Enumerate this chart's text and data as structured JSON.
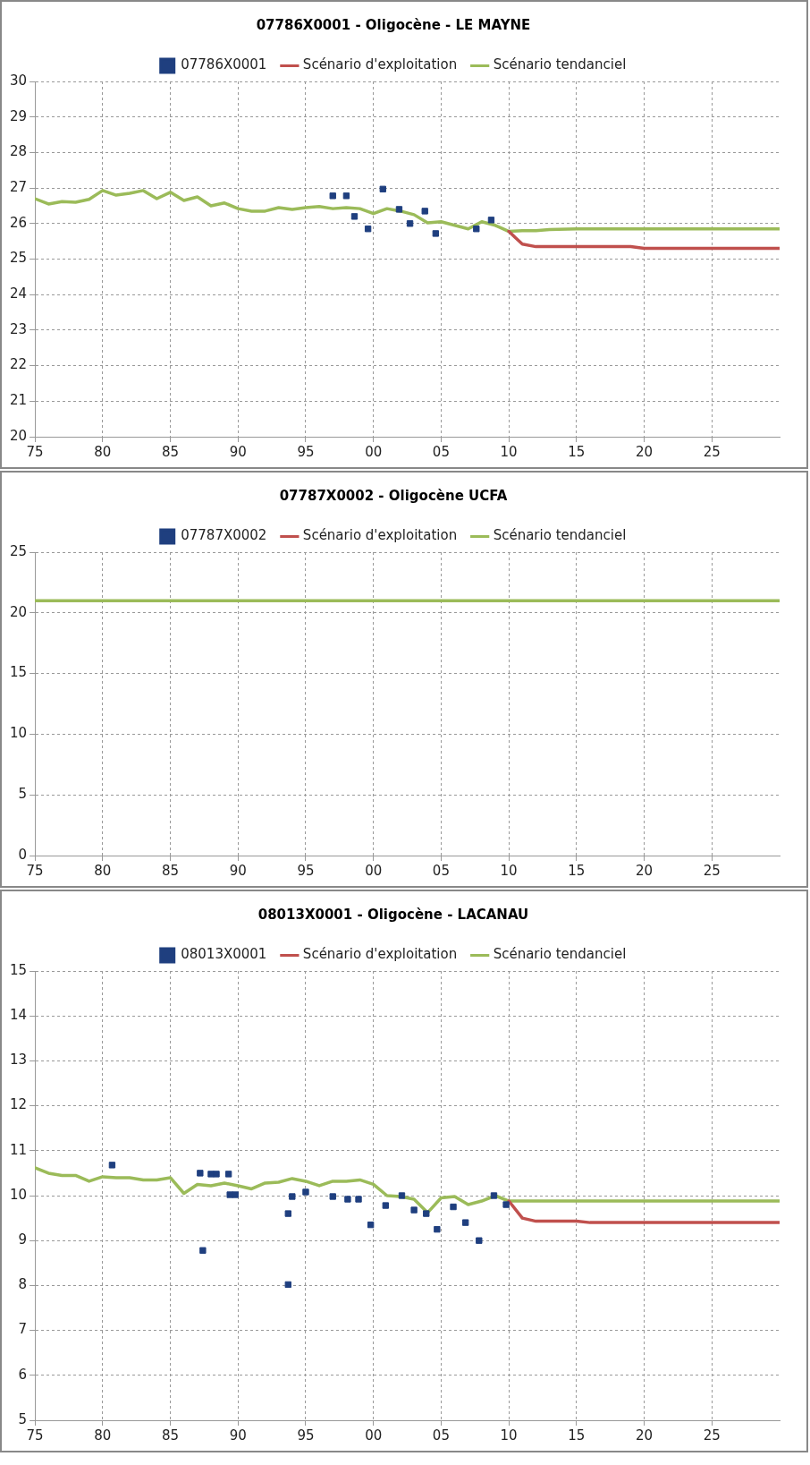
{
  "chart_data": [
    {
      "type": "line",
      "title": "07786X0001 - Oligocène - LE MAYNE",
      "legend": "top",
      "grid": true,
      "xlim": [
        1975,
        2030
      ],
      "xticks": [
        {
          "value": 1975,
          "label": "75"
        },
        {
          "value": 1980,
          "label": "80"
        },
        {
          "value": 1985,
          "label": "85"
        },
        {
          "value": 1990,
          "label": "90"
        },
        {
          "value": 1995,
          "label": "95"
        },
        {
          "value": 2000,
          "label": "00"
        },
        {
          "value": 2005,
          "label": "05"
        },
        {
          "value": 2010,
          "label": "10"
        },
        {
          "value": 2015,
          "label": "15"
        },
        {
          "value": 2020,
          "label": "20"
        },
        {
          "value": 2025,
          "label": "25"
        }
      ],
      "ylim": [
        20,
        30
      ],
      "yticks": [
        20,
        21,
        22,
        23,
        24,
        25,
        26,
        27,
        28,
        29,
        30
      ],
      "series": [
        {
          "name": "07786X0001",
          "type": "scatter",
          "marker": "square",
          "color": "#1f3f7f",
          "x": [
            1997.0,
            1998.0,
            1998.6,
            1999.6,
            2000.7,
            2001.9,
            2002.7,
            2003.8,
            2004.6,
            2007.6,
            2008.7
          ],
          "values": [
            26.78,
            26.78,
            26.2,
            25.85,
            26.97,
            26.4,
            26.0,
            26.35,
            25.72,
            25.85,
            26.1
          ]
        },
        {
          "name": "Scénario d'exploitation",
          "color": "#c0504d",
          "x": [
            2010,
            2010.5,
            2011,
            2012,
            2015,
            2019,
            2020,
            2030
          ],
          "values": [
            25.78,
            25.6,
            25.42,
            25.35,
            25.35,
            25.35,
            25.3,
            25.3
          ]
        },
        {
          "name": "Scénario tendanciel",
          "color": "#9bbb59",
          "x": [
            1975,
            1976,
            1977,
            1978,
            1979,
            1980,
            1981,
            1982,
            1983,
            1984,
            1985,
            1986,
            1987,
            1988,
            1989,
            1990,
            1991,
            1992,
            1993,
            1994,
            1995,
            1996,
            1997,
            1998,
            1999,
            2000,
            2001,
            2002,
            2003,
            2004,
            2005,
            2006,
            2007,
            2008,
            2009,
            2010,
            2011,
            2012,
            2013,
            2015,
            2030
          ],
          "values": [
            26.7,
            26.55,
            26.62,
            26.6,
            26.68,
            26.93,
            26.8,
            26.85,
            26.93,
            26.7,
            26.88,
            26.65,
            26.75,
            26.5,
            26.58,
            26.42,
            26.35,
            26.35,
            26.45,
            26.4,
            26.45,
            26.48,
            26.42,
            26.45,
            26.42,
            26.28,
            26.42,
            26.35,
            26.25,
            26.02,
            26.05,
            25.95,
            25.85,
            26.05,
            25.95,
            25.78,
            25.8,
            25.8,
            25.83,
            25.85,
            25.85
          ]
        }
      ]
    },
    {
      "type": "line",
      "title": "07787X0002 - Oligocène UCFA",
      "legend": "top",
      "grid": true,
      "xlim": [
        1975,
        2030
      ],
      "xticks": [
        {
          "value": 1975,
          "label": "75"
        },
        {
          "value": 1980,
          "label": "80"
        },
        {
          "value": 1985,
          "label": "85"
        },
        {
          "value": 1990,
          "label": "90"
        },
        {
          "value": 1995,
          "label": "95"
        },
        {
          "value": 2000,
          "label": "00"
        },
        {
          "value": 2005,
          "label": "05"
        },
        {
          "value": 2010,
          "label": "10"
        },
        {
          "value": 2015,
          "label": "15"
        },
        {
          "value": 2020,
          "label": "20"
        },
        {
          "value": 2025,
          "label": "25"
        }
      ],
      "ylim": [
        0,
        25
      ],
      "yticks": [
        0,
        5,
        10,
        15,
        20,
        25
      ],
      "series": [
        {
          "name": "07787X0002",
          "type": "scatter",
          "marker": "square",
          "color": "#1f3f7f"
        },
        {
          "name": "Scénario d'exploitation",
          "color": "#c0504d"
        },
        {
          "name": "Scénario tendanciel",
          "color": "#9bbb59",
          "x": [
            1975,
            2030
          ],
          "values": [
            21.0,
            21.0
          ]
        }
      ]
    },
    {
      "type": "line",
      "title": "08013X0001 - Oligocène - LACANAU",
      "legend": "top",
      "grid": true,
      "xlim": [
        1975,
        2030
      ],
      "xticks": [
        {
          "value": 1975,
          "label": "75"
        },
        {
          "value": 1980,
          "label": "80"
        },
        {
          "value": 1985,
          "label": "85"
        },
        {
          "value": 1990,
          "label": "90"
        },
        {
          "value": 1995,
          "label": "95"
        },
        {
          "value": 2000,
          "label": "00"
        },
        {
          "value": 2005,
          "label": "05"
        },
        {
          "value": 2010,
          "label": "10"
        },
        {
          "value": 2015,
          "label": "15"
        },
        {
          "value": 2020,
          "label": "20"
        },
        {
          "value": 2025,
          "label": "25"
        }
      ],
      "ylim": [
        5,
        15
      ],
      "yticks": [
        5,
        6,
        7,
        8,
        9,
        10,
        11,
        12,
        13,
        14,
        15
      ],
      "series": [
        {
          "name": "08013X0001",
          "type": "scatter",
          "marker": "square",
          "color": "#1f3f7f",
          "x": [
            1980.7,
            1987.2,
            1987.4,
            1988.0,
            1988.4,
            1989.3,
            1989.4,
            1989.8,
            1993.7,
            1993.7,
            1994.0,
            1995.0,
            1997.0,
            1998.1,
            1998.9,
            1999.8,
            2000.9,
            2002.1,
            2003.0,
            2003.9,
            2004.7,
            2005.9,
            2006.8,
            2007.8,
            2008.9,
            2009.8
          ],
          "values": [
            10.68,
            10.5,
            8.78,
            10.48,
            10.48,
            10.48,
            10.02,
            10.02,
            9.6,
            8.02,
            9.98,
            10.08,
            9.98,
            9.92,
            9.92,
            9.35,
            9.78,
            10.0,
            9.68,
            9.6,
            9.25,
            9.75,
            9.4,
            9.0,
            10.0,
            9.8
          ]
        },
        {
          "name": "Scénario d'exploitation",
          "color": "#c0504d",
          "x": [
            2010,
            2011,
            2012,
            2015,
            2016,
            2030
          ],
          "values": [
            9.88,
            9.5,
            9.43,
            9.43,
            9.4,
            9.4
          ]
        },
        {
          "name": "Scénario tendanciel",
          "color": "#9bbb59",
          "x": [
            1975,
            1976,
            1977,
            1978,
            1979,
            1980,
            1981,
            1982,
            1983,
            1984,
            1985,
            1986,
            1987,
            1988,
            1989,
            1990,
            1991,
            1992,
            1993,
            1994,
            1995,
            1996,
            1997,
            1998,
            1999,
            2000,
            2001,
            2002,
            2003,
            2004,
            2005,
            2006,
            2007,
            2008,
            2009,
            2010,
            2030
          ],
          "values": [
            10.62,
            10.5,
            10.45,
            10.45,
            10.32,
            10.42,
            10.4,
            10.4,
            10.35,
            10.35,
            10.4,
            10.05,
            10.25,
            10.22,
            10.28,
            10.22,
            10.15,
            10.28,
            10.3,
            10.38,
            10.32,
            10.22,
            10.32,
            10.32,
            10.35,
            10.25,
            10.0,
            9.98,
            9.92,
            9.62,
            9.95,
            9.98,
            9.8,
            9.88,
            10.0,
            9.88,
            9.88
          ]
        }
      ]
    }
  ]
}
